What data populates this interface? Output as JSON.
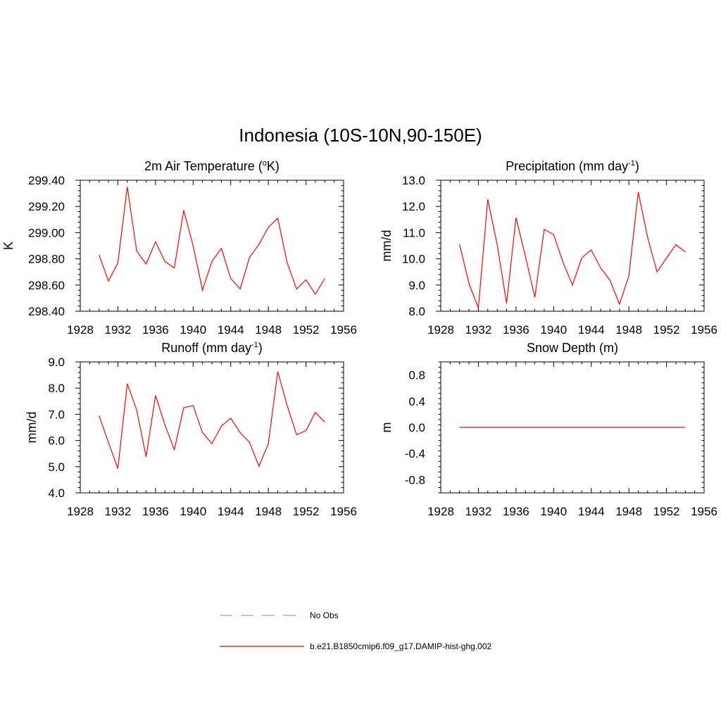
{
  "figure": {
    "title": "Indonesia (10S-10N,90-150E)"
  },
  "legend": {
    "entries": [
      {
        "label": "No Obs",
        "color": "#9999ff",
        "dash": true
      },
      {
        "label": "b.e21.B1850cmip6.f09_g17.DAMIP-hist-ghg.002",
        "color": "#ff0000",
        "dash": false
      }
    ]
  },
  "chart_data": [
    {
      "type": "line",
      "title": "2m Air Temperature (",
      "title_sup": "o",
      "title_after": "K)",
      "xlabel": "",
      "ylabel": "K",
      "xlim": [
        1928,
        1956
      ],
      "ylim": [
        298.4,
        299.4
      ],
      "xticks": [
        "1928",
        "1932",
        "1936",
        "1940",
        "1944",
        "1948",
        "1952",
        "1956"
      ],
      "yticks": [
        "298.40",
        "298.60",
        "298.80",
        "299.00",
        "299.20",
        "299.40"
      ],
      "series": [
        {
          "color": "#ff0000",
          "x": [
            1930,
            1931,
            1932,
            1933,
            1934,
            1935,
            1936,
            1937,
            1938,
            1939,
            1940,
            1941,
            1942,
            1943,
            1944,
            1945,
            1946,
            1947,
            1948,
            1949,
            1950,
            1951,
            1952,
            1953,
            1954
          ],
          "values": [
            298.83,
            298.63,
            298.77,
            299.35,
            298.86,
            298.76,
            298.93,
            298.78,
            298.73,
            299.17,
            298.9,
            298.56,
            298.78,
            298.88,
            298.65,
            298.57,
            298.81,
            298.91,
            299.04,
            299.11,
            298.77,
            298.57,
            298.64,
            298.53,
            298.65
          ]
        }
      ]
    },
    {
      "type": "line",
      "title": "Precipitation (mm day",
      "title_sup": "-1",
      "title_after": ")",
      "xlabel": "",
      "ylabel": "mm/d",
      "xlim": [
        1928,
        1956
      ],
      "ylim": [
        8.0,
        13.0
      ],
      "xticks": [
        "1928",
        "1932",
        "1936",
        "1940",
        "1944",
        "1948",
        "1952",
        "1956"
      ],
      "yticks": [
        "8.0",
        "9.0",
        "10.0",
        "11.0",
        "12.0",
        "13.0"
      ],
      "series": [
        {
          "color": "#ff0000",
          "x": [
            1930,
            1931,
            1932,
            1933,
            1934,
            1935,
            1936,
            1937,
            1938,
            1939,
            1940,
            1941,
            1942,
            1943,
            1944,
            1945,
            1946,
            1947,
            1948,
            1949,
            1950,
            1951,
            1952,
            1953,
            1954
          ],
          "values": [
            10.55,
            9.05,
            8.12,
            12.27,
            10.55,
            8.3,
            11.57,
            10.1,
            8.53,
            11.12,
            10.93,
            9.87,
            9.0,
            10.04,
            10.34,
            9.65,
            9.18,
            8.27,
            9.34,
            12.55,
            10.81,
            9.5,
            10.03,
            10.54,
            10.26
          ]
        }
      ]
    },
    {
      "type": "line",
      "title": "Runoff (mm day",
      "title_sup": "-1",
      "title_after": ")",
      "xlabel": "",
      "ylabel": "mm/d",
      "xlim": [
        1928,
        1956
      ],
      "ylim": [
        4.0,
        9.0
      ],
      "xticks": [
        "1928",
        "1932",
        "1936",
        "1940",
        "1944",
        "1948",
        "1952",
        "1956"
      ],
      "yticks": [
        "4.0",
        "5.0",
        "6.0",
        "7.0",
        "8.0",
        "9.0"
      ],
      "series": [
        {
          "color": "#ff0000",
          "x": [
            1930,
            1931,
            1932,
            1933,
            1934,
            1935,
            1936,
            1937,
            1938,
            1939,
            1940,
            1941,
            1942,
            1943,
            1944,
            1945,
            1946,
            1947,
            1948,
            1949,
            1950,
            1951,
            1952,
            1953,
            1954
          ],
          "values": [
            6.95,
            5.92,
            4.93,
            8.17,
            7.17,
            5.38,
            7.72,
            6.6,
            5.65,
            7.25,
            7.33,
            6.3,
            5.88,
            6.55,
            6.85,
            6.3,
            5.93,
            5.02,
            5.88,
            8.63,
            7.33,
            6.22,
            6.38,
            7.07,
            6.7
          ]
        }
      ]
    },
    {
      "type": "line",
      "title": "Snow Depth (m)",
      "title_sup": "",
      "title_after": "",
      "xlabel": "",
      "ylabel": "m",
      "xlim": [
        1928,
        1956
      ],
      "ylim": [
        -1.0,
        1.0
      ],
      "xticks": [
        "1928",
        "1932",
        "1936",
        "1940",
        "1944",
        "1948",
        "1952",
        "1956"
      ],
      "yticks": [
        "-0.8",
        "-0.4",
        "0.0",
        "0.4",
        "0.8"
      ],
      "series": [
        {
          "color": "#ff0000",
          "x": [
            1930,
            1954
          ],
          "values": [
            0.0,
            0.0
          ]
        }
      ]
    }
  ]
}
